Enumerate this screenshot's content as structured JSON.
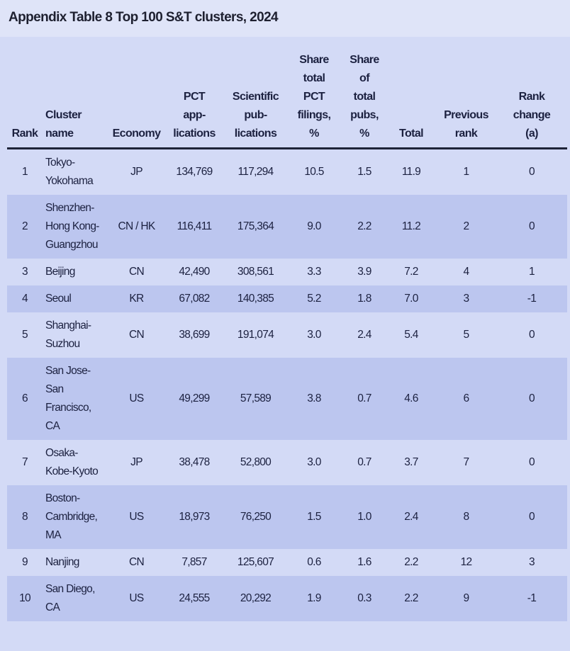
{
  "title": "Appendix Table 8 Top 100 S&T clusters, 2024",
  "columns": [
    "Rank",
    "Cluster\nname",
    "Economy",
    "PCT\napp-\nlications",
    "Scientific\npub-\nlications",
    "Share\ntotal\nPCT\nfilings,\n%",
    "Share\nof\ntotal\npubs,\n%",
    "Total",
    "Previous\nrank",
    "Rank\nchange\n(a)"
  ],
  "rows": [
    [
      "1",
      "Tokyo-\nYokohama",
      "JP",
      "134,769",
      "117,294",
      "10.5",
      "1.5",
      "11.9",
      "1",
      "0"
    ],
    [
      "2",
      "Shenzhen-\nHong Kong-\nGuangzhou",
      "CN / HK",
      "116,411",
      "175,364",
      "9.0",
      "2.2",
      "11.2",
      "2",
      "0"
    ],
    [
      "3",
      "Beijing",
      "CN",
      "42,490",
      "308,561",
      "3.3",
      "3.9",
      "7.2",
      "4",
      "1"
    ],
    [
      "4",
      "Seoul",
      "KR",
      "67,082",
      "140,385",
      "5.2",
      "1.8",
      "7.0",
      "3",
      "-1"
    ],
    [
      "5",
      "Shanghai-\nSuzhou",
      "CN",
      "38,699",
      "191,074",
      "3.0",
      "2.4",
      "5.4",
      "5",
      "0"
    ],
    [
      "6",
      "San Jose-\nSan\nFrancisco,\nCA",
      "US",
      "49,299",
      "57,589",
      "3.8",
      "0.7",
      "4.6",
      "6",
      "0"
    ],
    [
      "7",
      "Osaka-\nKobe-Kyoto",
      "JP",
      "38,478",
      "52,800",
      "3.0",
      "0.7",
      "3.7",
      "7",
      "0"
    ],
    [
      "8",
      "Boston-\nCambridge,\nMA",
      "US",
      "18,973",
      "76,250",
      "1.5",
      "1.0",
      "2.4",
      "8",
      "0"
    ],
    [
      "9",
      "Nanjing",
      "CN",
      "7,857",
      "125,607",
      "0.6",
      "1.6",
      "2.2",
      "12",
      "3"
    ],
    [
      "10",
      "San Diego,\nCA",
      "US",
      "24,555",
      "20,292",
      "1.9",
      "0.3",
      "2.2",
      "9",
      "-1"
    ]
  ]
}
